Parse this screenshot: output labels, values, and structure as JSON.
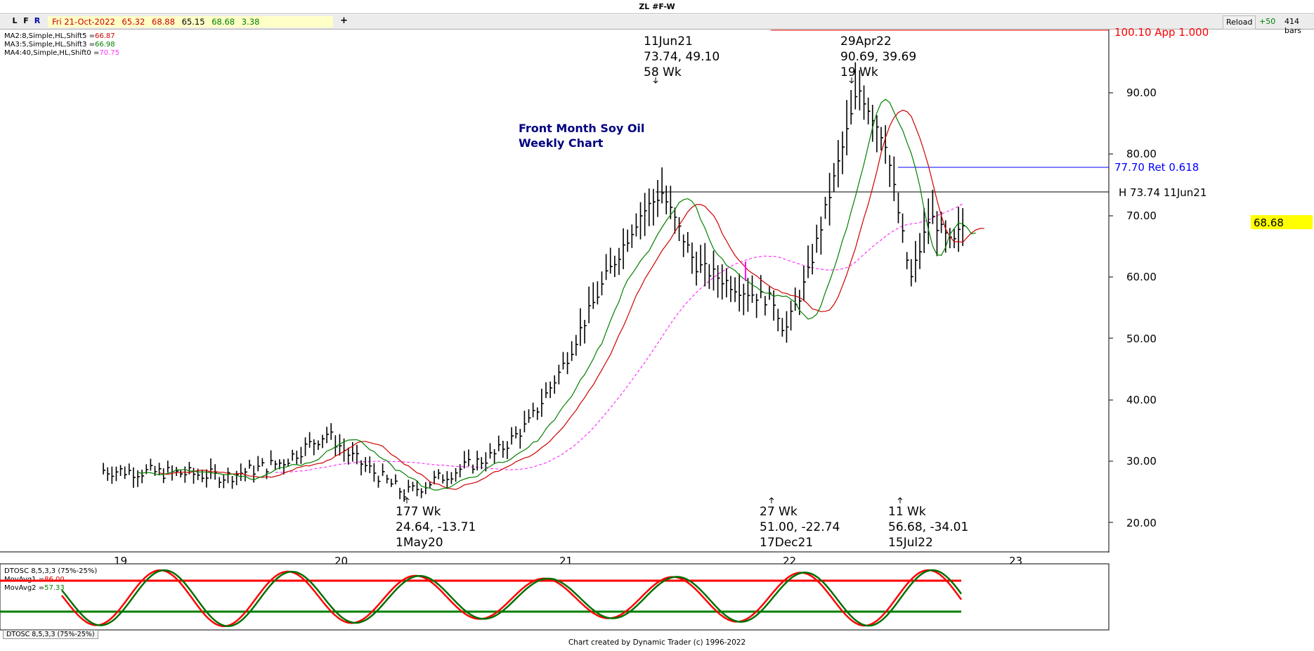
{
  "window": {
    "title": "ZL #F-W"
  },
  "toolbar": {
    "btn_l": "L",
    "btn_f": "F",
    "btn_r": "R",
    "date": "Fri 21-Oct-2022",
    "open": "65.32",
    "high": "68.88",
    "low": "65.15",
    "close": "68.68",
    "change": "3.38",
    "plus": "+",
    "reload": "Reload",
    "step": "+50",
    "bars": "414 bars"
  },
  "legend": {
    "ma2": "MA2:8,Simple,HL,Shift5 =",
    "ma2_val": "66.87",
    "ma3": "MA3:5,Simple,HL,Shift3 =",
    "ma3_val": "66.98",
    "ma4": "MA4:40,Simple,HL,Shift0 =",
    "ma4_val": "70.75"
  },
  "chart_data": {
    "type": "line",
    "title": "Front Month Soy Oil",
    "subtitle": "Weekly Chart",
    "yticks": [
      "90.00",
      "80.00",
      "70.00",
      "60.00",
      "50.00",
      "40.00",
      "30.00",
      "20.00"
    ],
    "xticks": [
      "19",
      "20",
      "21",
      "22",
      "23"
    ],
    "last_price": "68.68",
    "series": [
      {
        "points": [
          [
            2018.95,
            28.5
          ],
          [
            2019.3,
            28.0
          ],
          [
            2019.5,
            27.5
          ],
          [
            2019.75,
            29.8
          ],
          [
            2019.95,
            34.5
          ],
          [
            2020.05,
            31
          ],
          [
            2020.3,
            24.64
          ],
          [
            2020.5,
            28
          ],
          [
            2020.7,
            31
          ],
          [
            2020.85,
            36
          ],
          [
            2021.0,
            45
          ],
          [
            2021.2,
            60
          ],
          [
            2021.35,
            70
          ],
          [
            2021.45,
            73.74
          ],
          [
            2021.6,
            62
          ],
          [
            2021.8,
            58
          ],
          [
            2021.95,
            56
          ],
          [
            2022.0,
            51.0
          ],
          [
            2022.1,
            60
          ],
          [
            2022.25,
            80
          ],
          [
            2022.33,
            90.69
          ],
          [
            2022.45,
            82
          ],
          [
            2022.55,
            62
          ],
          [
            2022.54,
            56.68
          ],
          [
            2022.65,
            70
          ],
          [
            2022.75,
            65
          ],
          [
            2022.8,
            68.68
          ]
        ]
      }
    ],
    "annotations": {
      "hi1": {
        "date": "11Jun21",
        "vals": "73.74, 49.10",
        "wk": "58 Wk"
      },
      "hi2": {
        "date": "29Apr22",
        "vals": "90.69, 39.69",
        "wk": "19 Wk"
      },
      "lo1": {
        "wk": "177 Wk",
        "vals": "24.64, -13.71",
        "date": "1May20"
      },
      "lo2": {
        "wk": "27 Wk",
        "vals": "51.00, -22.74",
        "date": "17Dec21"
      },
      "lo3": {
        "wk": "11 Wk",
        "vals": "56.68, -34.01",
        "date": "15Jul22"
      },
      "ret": "77.70 Ret 0.618",
      "h_line": "H 73.74 11Jun21",
      "app": "100.10 App 1.000"
    },
    "oscillator": {
      "title": "DTOSC 8,5,3,3 (75%-25%)",
      "mov1": "MovAvg1 =",
      "mov1_val": "86.00",
      "mov2": "MovAvg2 =",
      "mov2_val": "57.33",
      "tab": "DTOSC 8,5,3,3 (75%-25%)"
    }
  },
  "colors": {
    "ma2": "#cc0000",
    "ma3": "#008000",
    "ma4": "#ff33ff",
    "ret": "#0000ff",
    "highlight": "#ffff00"
  },
  "footer": "Chart created by Dynamic Trader  (c) 1996-2022"
}
